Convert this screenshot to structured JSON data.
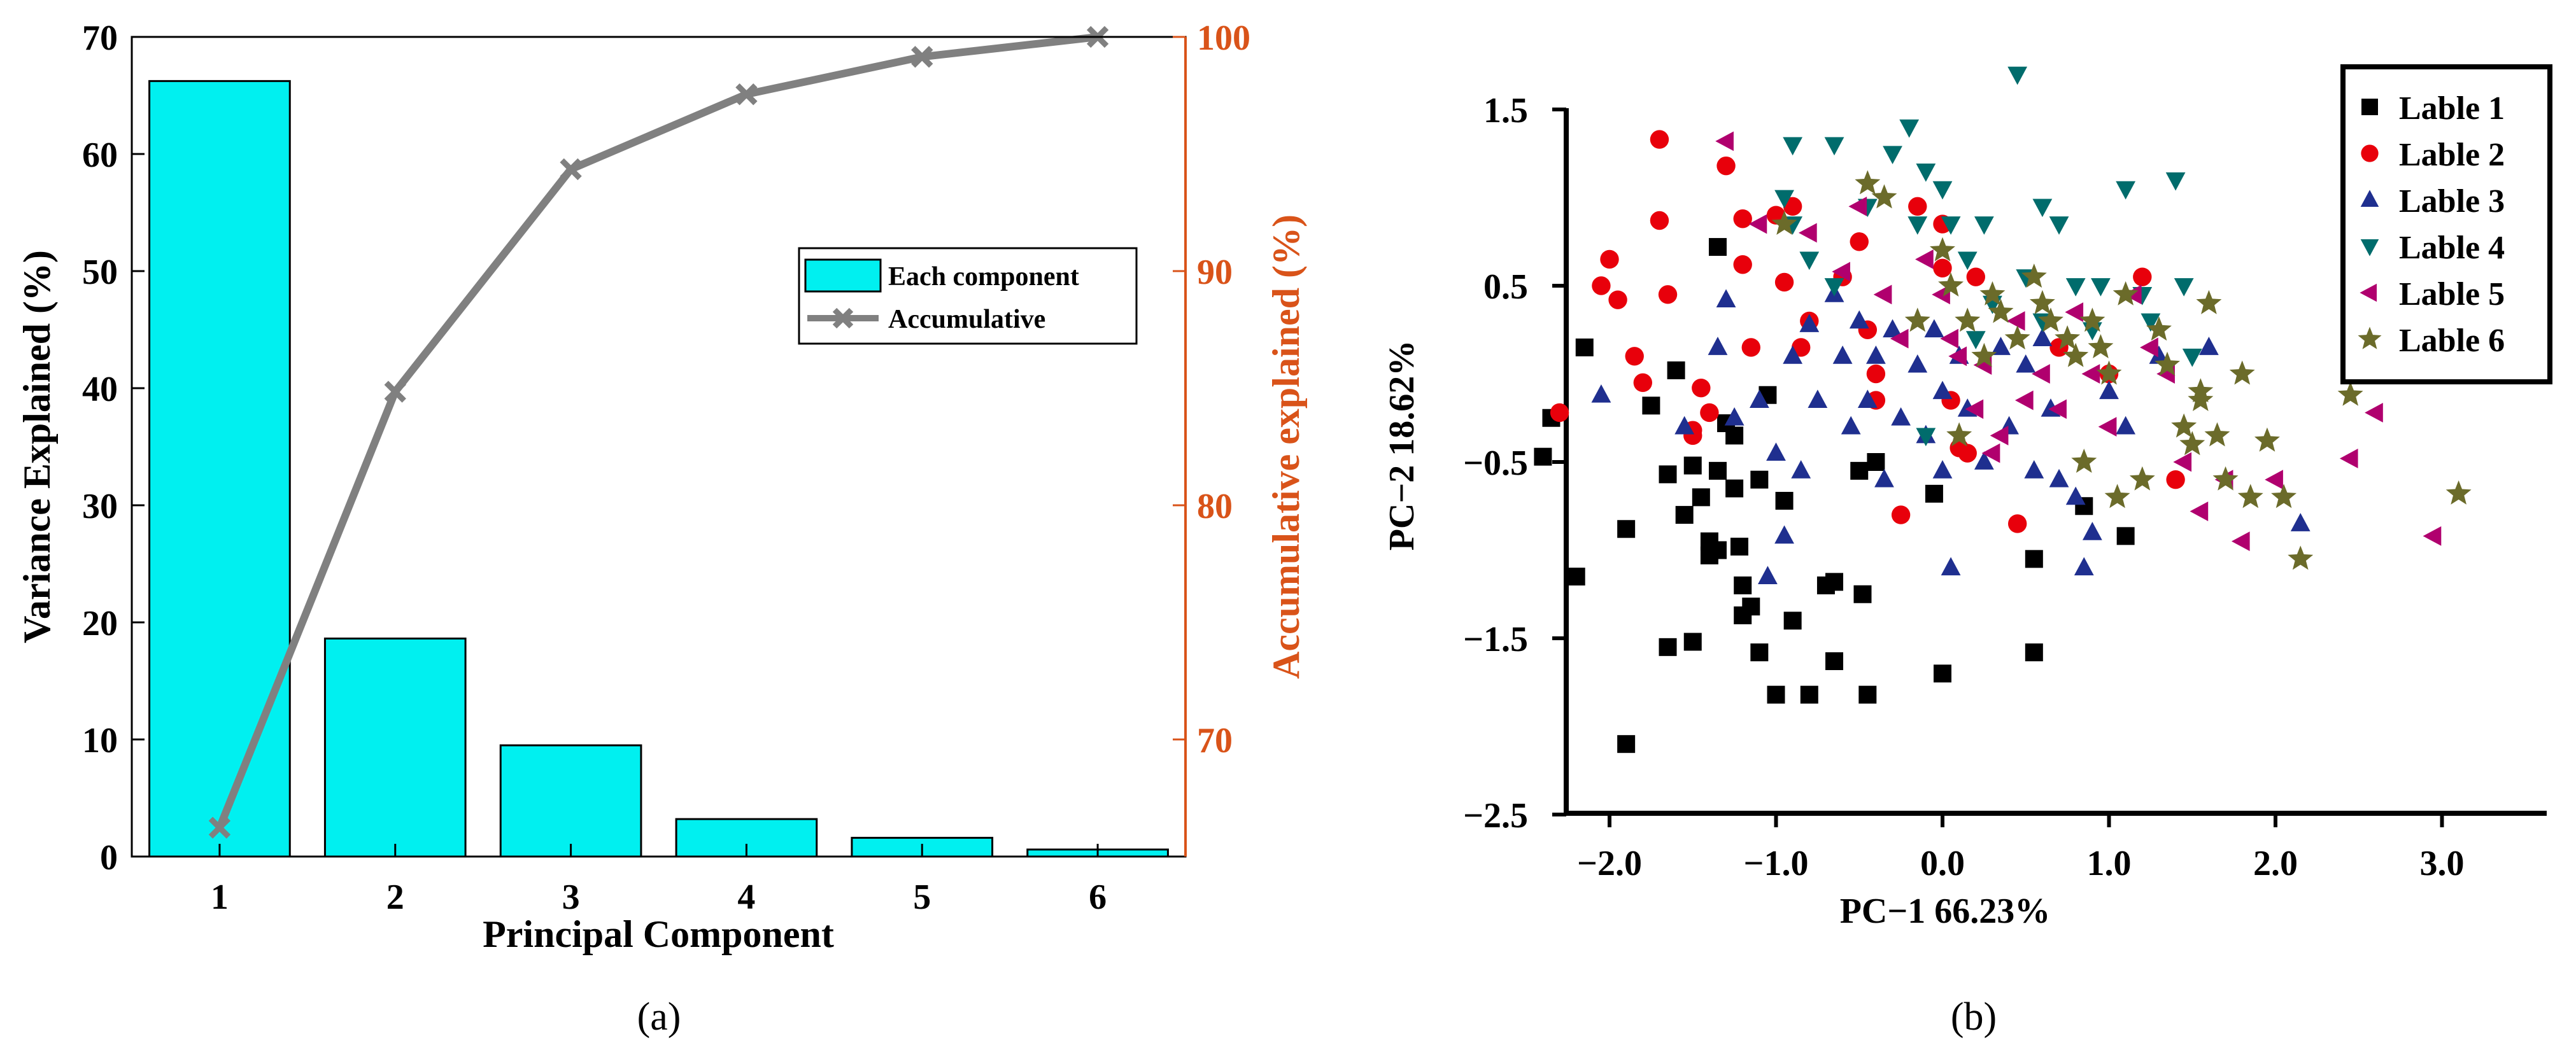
{
  "colors": {
    "bar_fill": "#00f0f0",
    "line_color": "#808080",
    "right_axis_color": "#d95319",
    "label1": "#000000",
    "label2": "#e8000b",
    "label3": "#1f2f8f",
    "label4": "#006c6c",
    "label5": "#b0006e",
    "label6": "#6b6b2a"
  },
  "chart_data": [
    {
      "type": "bar",
      "panel_label": "(a)",
      "xlabel": "Principal Component",
      "ylabel": "Variance Explained (%)",
      "ylabel_right": "Accumulative explained (%)",
      "categories": [
        "1",
        "2",
        "3",
        "4",
        "5",
        "6"
      ],
      "ylim": [
        0,
        70
      ],
      "yticks": [
        0,
        10,
        20,
        30,
        40,
        50,
        60,
        70
      ],
      "ylim_right": [
        65,
        100
      ],
      "yticks_right": [
        70,
        80,
        90,
        100
      ],
      "legend_position": "center-right",
      "series": [
        {
          "name": "Each component",
          "kind": "bar",
          "axis": "left",
          "values": [
            66.23,
            18.62,
            9.5,
            3.2,
            1.6,
            0.6
          ]
        },
        {
          "name": "Accumulative",
          "kind": "line",
          "axis": "right",
          "values": [
            66.23,
            84.85,
            94.35,
            97.55,
            99.15,
            100
          ]
        }
      ]
    },
    {
      "type": "scatter",
      "panel_label": "(b)",
      "xlabel": "PC−1 66.23%",
      "ylabel": "PC−2 18.62%",
      "xlim": [
        -2.6,
        3.3
      ],
      "ylim": [
        -2.5,
        1.5
      ],
      "xticks": [
        -2.0,
        -1.0,
        0.0,
        1.0,
        2.0,
        3.0
      ],
      "xtick_labels": [
        "−2.0",
        "−1.0",
        "0.0",
        "1.0",
        "2.0",
        "3.0"
      ],
      "yticks": [
        1.5,
        0.5,
        -0.5,
        -1.5,
        -2.5
      ],
      "ytick_labels": [
        "1.5",
        "0.5",
        "−0.5",
        "−1.5",
        "−2.5"
      ],
      "legend_position": "top-right",
      "series": [
        {
          "name": "Lable 1",
          "marker": "square",
          "color": "#000000",
          "points": [
            [
              -2.4,
              -0.47
            ],
            [
              -2.35,
              -0.25
            ],
            [
              -2.2,
              -1.15
            ],
            [
              -2.15,
              0.15
            ],
            [
              -1.9,
              -0.88
            ],
            [
              -1.9,
              -2.1
            ],
            [
              -1.75,
              -0.18
            ],
            [
              -1.65,
              -0.57
            ],
            [
              -1.65,
              -1.55
            ],
            [
              -1.6,
              0.02
            ],
            [
              -1.55,
              -0.8
            ],
            [
              -1.5,
              -0.52
            ],
            [
              -1.5,
              -1.52
            ],
            [
              -1.45,
              -0.7
            ],
            [
              -1.4,
              -0.95
            ],
            [
              -1.4,
              -1.03
            ],
            [
              -1.35,
              0.72
            ],
            [
              -1.35,
              -0.55
            ],
            [
              -1.35,
              -1.0
            ],
            [
              -1.3,
              -0.28
            ],
            [
              -1.25,
              -0.35
            ],
            [
              -1.25,
              -0.65
            ],
            [
              -1.22,
              -0.98
            ],
            [
              -1.2,
              -1.2
            ],
            [
              -1.2,
              -1.37
            ],
            [
              -1.15,
              -1.32
            ],
            [
              -1.1,
              -1.58
            ],
            [
              -1.1,
              -0.6
            ],
            [
              -1.05,
              -0.12
            ],
            [
              -1.0,
              -1.82
            ],
            [
              -0.95,
              -0.72
            ],
            [
              -0.9,
              -1.4
            ],
            [
              -0.8,
              -1.82
            ],
            [
              -0.7,
              -1.2
            ],
            [
              -0.65,
              -1.18
            ],
            [
              -0.65,
              -1.63
            ],
            [
              -0.5,
              -0.55
            ],
            [
              -0.48,
              -1.25
            ],
            [
              -0.45,
              -1.82
            ],
            [
              -0.4,
              -0.5
            ],
            [
              -0.05,
              -0.68
            ],
            [
              0.0,
              -1.7
            ],
            [
              0.55,
              -1.05
            ],
            [
              0.55,
              -1.58
            ],
            [
              0.85,
              -0.75
            ],
            [
              1.1,
              -0.92
            ]
          ]
        },
        {
          "name": "Lable 2",
          "marker": "circle",
          "color": "#e8000b",
          "points": [
            [
              -2.3,
              -0.22
            ],
            [
              -2.05,
              0.5
            ],
            [
              -2.0,
              0.65
            ],
            [
              -1.95,
              0.42
            ],
            [
              -1.85,
              0.1
            ],
            [
              -1.8,
              -0.05
            ],
            [
              -1.7,
              1.33
            ],
            [
              -1.7,
              0.87
            ],
            [
              -1.65,
              0.45
            ],
            [
              -1.5,
              -0.32
            ],
            [
              -1.5,
              -0.35
            ],
            [
              -1.45,
              -0.08
            ],
            [
              -1.4,
              -0.22
            ],
            [
              -1.3,
              1.18
            ],
            [
              -1.2,
              0.88
            ],
            [
              -1.2,
              0.62
            ],
            [
              -1.15,
              0.15
            ],
            [
              -1.0,
              0.9
            ],
            [
              -0.95,
              0.52
            ],
            [
              -0.9,
              0.95
            ],
            [
              -0.85,
              0.15
            ],
            [
              -0.8,
              0.3
            ],
            [
              -0.6,
              0.55
            ],
            [
              -0.5,
              0.75
            ],
            [
              -0.45,
              0.25
            ],
            [
              -0.4,
              0.0
            ],
            [
              -0.4,
              -0.15
            ],
            [
              -0.25,
              -0.8
            ],
            [
              -0.15,
              0.95
            ],
            [
              0.0,
              0.85
            ],
            [
              0.0,
              0.6
            ],
            [
              0.05,
              -0.15
            ],
            [
              0.1,
              -0.42
            ],
            [
              0.15,
              -0.45
            ],
            [
              0.2,
              0.55
            ],
            [
              0.45,
              -0.85
            ],
            [
              0.7,
              0.15
            ],
            [
              1.0,
              0.0
            ],
            [
              1.2,
              0.55
            ],
            [
              1.4,
              -0.6
            ]
          ]
        },
        {
          "name": "Lable 3",
          "marker": "triangle-up",
          "color": "#1f2f8f",
          "points": [
            [
              -2.05,
              -0.12
            ],
            [
              -1.55,
              -0.3
            ],
            [
              -1.35,
              0.15
            ],
            [
              -1.3,
              0.42
            ],
            [
              -1.25,
              -0.25
            ],
            [
              -1.1,
              -0.15
            ],
            [
              -1.05,
              -1.15
            ],
            [
              -1.0,
              -0.45
            ],
            [
              -0.95,
              -0.92
            ],
            [
              -0.9,
              0.1
            ],
            [
              -0.85,
              -0.55
            ],
            [
              -0.8,
              0.28
            ],
            [
              -0.75,
              -0.15
            ],
            [
              -0.65,
              0.45
            ],
            [
              -0.6,
              0.1
            ],
            [
              -0.55,
              -0.3
            ],
            [
              -0.5,
              0.3
            ],
            [
              -0.45,
              -0.15
            ],
            [
              -0.4,
              0.1
            ],
            [
              -0.35,
              -0.6
            ],
            [
              -0.3,
              0.25
            ],
            [
              -0.25,
              -0.25
            ],
            [
              -0.15,
              0.05
            ],
            [
              -0.1,
              -0.35
            ],
            [
              -0.05,
              0.25
            ],
            [
              0.0,
              -0.1
            ],
            [
              0.0,
              -0.55
            ],
            [
              0.05,
              -1.1
            ],
            [
              0.1,
              0.1
            ],
            [
              0.15,
              -0.2
            ],
            [
              0.25,
              -0.5
            ],
            [
              0.35,
              0.15
            ],
            [
              0.4,
              -0.3
            ],
            [
              0.5,
              0.05
            ],
            [
              0.55,
              -0.55
            ],
            [
              0.6,
              0.2
            ],
            [
              0.65,
              -0.2
            ],
            [
              0.7,
              -0.6
            ],
            [
              0.8,
              -0.7
            ],
            [
              0.85,
              -1.1
            ],
            [
              0.9,
              -0.9
            ],
            [
              1.0,
              -0.1
            ],
            [
              1.1,
              -0.3
            ],
            [
              1.3,
              0.1
            ],
            [
              1.6,
              0.15
            ],
            [
              2.15,
              -0.85
            ]
          ]
        },
        {
          "name": "Lable 4",
          "marker": "triangle-down",
          "color": "#006c6c",
          "points": [
            [
              -0.9,
              1.3
            ],
            [
              -0.65,
              1.3
            ],
            [
              -0.95,
              1.0
            ],
            [
              -0.9,
              0.85
            ],
            [
              -0.8,
              0.65
            ],
            [
              -0.65,
              0.5
            ],
            [
              -0.45,
              0.95
            ],
            [
              -0.3,
              1.25
            ],
            [
              -0.2,
              1.4
            ],
            [
              -0.1,
              1.15
            ],
            [
              0.0,
              1.05
            ],
            [
              -0.15,
              0.85
            ],
            [
              0.05,
              0.85
            ],
            [
              0.15,
              0.65
            ],
            [
              0.25,
              0.85
            ],
            [
              0.3,
              0.4
            ],
            [
              0.45,
              1.7
            ],
            [
              0.5,
              0.55
            ],
            [
              0.6,
              0.95
            ],
            [
              0.7,
              0.85
            ],
            [
              0.8,
              0.5
            ],
            [
              0.9,
              0.25
            ],
            [
              1.1,
              1.05
            ],
            [
              1.2,
              0.45
            ],
            [
              1.25,
              0.3
            ],
            [
              1.4,
              1.1
            ],
            [
              1.45,
              0.5
            ],
            [
              1.5,
              0.1
            ],
            [
              0.95,
              0.5
            ],
            [
              0.6,
              0.3
            ],
            [
              -0.1,
              -0.35
            ],
            [
              0.2,
              0.2
            ]
          ]
        },
        {
          "name": "Lable 5",
          "marker": "triangle-left",
          "color": "#b0006e",
          "points": [
            [
              -1.3,
              1.32
            ],
            [
              -1.1,
              0.85
            ],
            [
              -0.8,
              0.8
            ],
            [
              -0.6,
              0.58
            ],
            [
              -0.5,
              0.95
            ],
            [
              -0.35,
              0.45
            ],
            [
              -0.25,
              0.2
            ],
            [
              -0.1,
              0.65
            ],
            [
              0.0,
              0.45
            ],
            [
              0.05,
              0.2
            ],
            [
              0.1,
              0.1
            ],
            [
              0.2,
              -0.2
            ],
            [
              0.25,
              0.05
            ],
            [
              0.35,
              -0.35
            ],
            [
              0.45,
              0.3
            ],
            [
              0.6,
              0.0
            ],
            [
              0.7,
              -0.2
            ],
            [
              0.8,
              0.35
            ],
            [
              0.9,
              0.0
            ],
            [
              1.0,
              -0.3
            ],
            [
              1.15,
              0.45
            ],
            [
              1.25,
              0.15
            ],
            [
              1.35,
              0.0
            ],
            [
              1.45,
              -0.5
            ],
            [
              1.55,
              -0.78
            ],
            [
              1.7,
              -0.6
            ],
            [
              1.8,
              -0.95
            ],
            [
              2.0,
              -0.6
            ],
            [
              2.45,
              -0.48
            ],
            [
              2.6,
              -0.22
            ],
            [
              2.95,
              -0.92
            ],
            [
              0.3,
              -0.45
            ],
            [
              0.5,
              -0.15
            ]
          ]
        },
        {
          "name": "Lable 6",
          "marker": "star",
          "color": "#6b6b2a",
          "points": [
            [
              -0.95,
              0.85
            ],
            [
              -0.45,
              1.08
            ],
            [
              -0.35,
              1.0
            ],
            [
              -0.15,
              0.3
            ],
            [
              0.0,
              0.7
            ],
            [
              0.05,
              0.5
            ],
            [
              0.15,
              0.3
            ],
            [
              0.25,
              0.1
            ],
            [
              0.3,
              0.45
            ],
            [
              0.35,
              0.35
            ],
            [
              0.45,
              0.2
            ],
            [
              0.55,
              0.55
            ],
            [
              0.6,
              0.4
            ],
            [
              0.65,
              0.3
            ],
            [
              0.75,
              0.2
            ],
            [
              0.8,
              0.1
            ],
            [
              0.85,
              -0.5
            ],
            [
              0.9,
              0.3
            ],
            [
              0.95,
              0.15
            ],
            [
              1.0,
              0.0
            ],
            [
              1.05,
              -0.7
            ],
            [
              1.1,
              0.45
            ],
            [
              1.2,
              -0.6
            ],
            [
              1.3,
              0.25
            ],
            [
              1.35,
              0.05
            ],
            [
              1.45,
              -0.3
            ],
            [
              1.5,
              -0.4
            ],
            [
              1.55,
              -0.15
            ],
            [
              1.6,
              0.4
            ],
            [
              1.65,
              -0.35
            ],
            [
              1.7,
              -0.6
            ],
            [
              1.8,
              0.0
            ],
            [
              1.85,
              -0.7
            ],
            [
              1.95,
              -0.38
            ],
            [
              2.05,
              -0.7
            ],
            [
              2.15,
              -1.05
            ],
            [
              2.45,
              -0.12
            ],
            [
              3.1,
              -0.68
            ],
            [
              0.1,
              -0.35
            ],
            [
              1.55,
              -0.1
            ]
          ]
        }
      ]
    }
  ]
}
